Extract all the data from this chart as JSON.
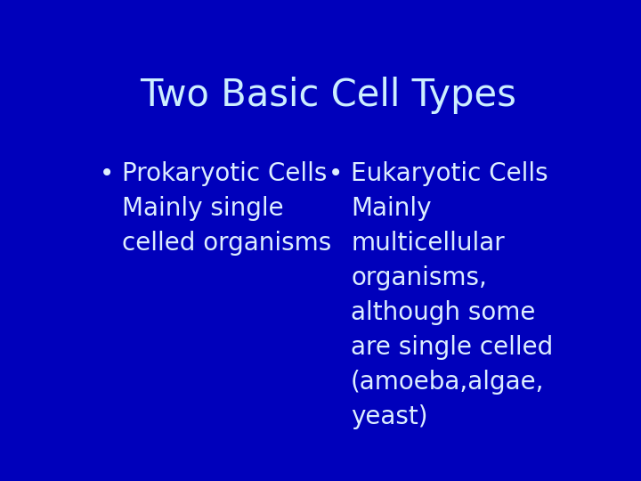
{
  "title": "Two Basic Cell Types",
  "title_color": "#cceeff",
  "background_color": "#0000bb",
  "text_color": "#ddeeff",
  "bullet_left_full": "Prokaryotic Cells\nMainly single\ncelled organisms",
  "bullet_right_full": "Eukaryotic Cells\nMainly\nmulticellular\norganisms,\nalthough some\nare single celled\n(amoeba,algae,\nyeast)",
  "title_fontsize": 30,
  "body_fontsize": 20,
  "figwidth": 7.2,
  "figheight": 5.4,
  "dpi": 100
}
